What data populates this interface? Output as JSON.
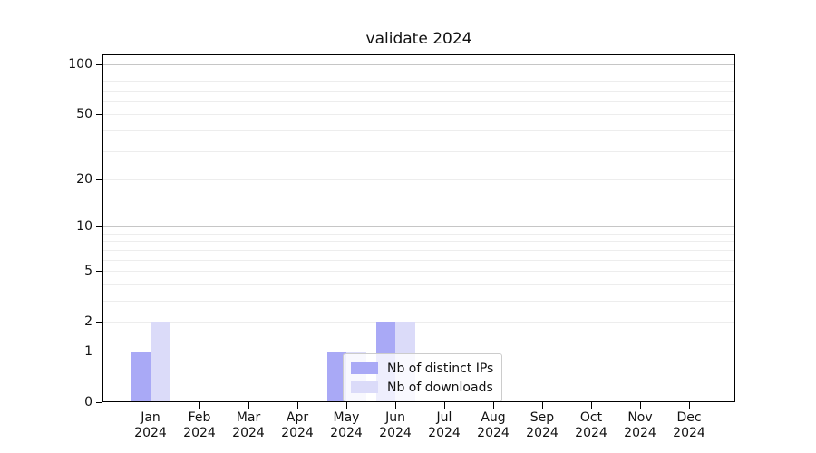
{
  "title": "validate 2024",
  "chart_data": {
    "type": "bar",
    "title": "validate 2024",
    "categories": [
      "Jan",
      "Feb",
      "Mar",
      "Apr",
      "May",
      "Jun",
      "Jul",
      "Aug",
      "Sep",
      "Oct",
      "Nov",
      "Dec"
    ],
    "category_year": "2024",
    "series": [
      {
        "name": "Nb of distinct IPs",
        "color": "#a9a9f6",
        "values": [
          1,
          0,
          0,
          0,
          1,
          2,
          0,
          0,
          0,
          0,
          0,
          0
        ]
      },
      {
        "name": "Nb of downloads",
        "color": "#dbdbf9",
        "values": [
          2,
          0,
          0,
          0,
          1,
          2,
          0,
          0,
          0,
          0,
          0,
          0
        ]
      }
    ],
    "xlabel": "",
    "ylabel": "",
    "y_axis": {
      "scale": "log1p",
      "labeled_ticks": [
        0,
        1,
        2,
        5,
        10,
        20,
        50,
        100
      ],
      "major_grid_values": [
        1,
        10,
        100
      ],
      "minor_grid_values": [
        2,
        3,
        4,
        5,
        6,
        7,
        8,
        9,
        20,
        30,
        40,
        50,
        60,
        70,
        80,
        90
      ],
      "ylim": [
        0,
        100
      ]
    },
    "grid": true,
    "legend": {
      "position": "lower-right-of-center",
      "entries": [
        "Nb of distinct IPs",
        "Nb of downloads"
      ]
    }
  },
  "colors": {
    "background": "#ffffff",
    "spine": "#000000",
    "major_grid": "#c6c6c6",
    "minor_grid": "#ededed",
    "text": "#111111",
    "legend_border": "#cccccc"
  }
}
